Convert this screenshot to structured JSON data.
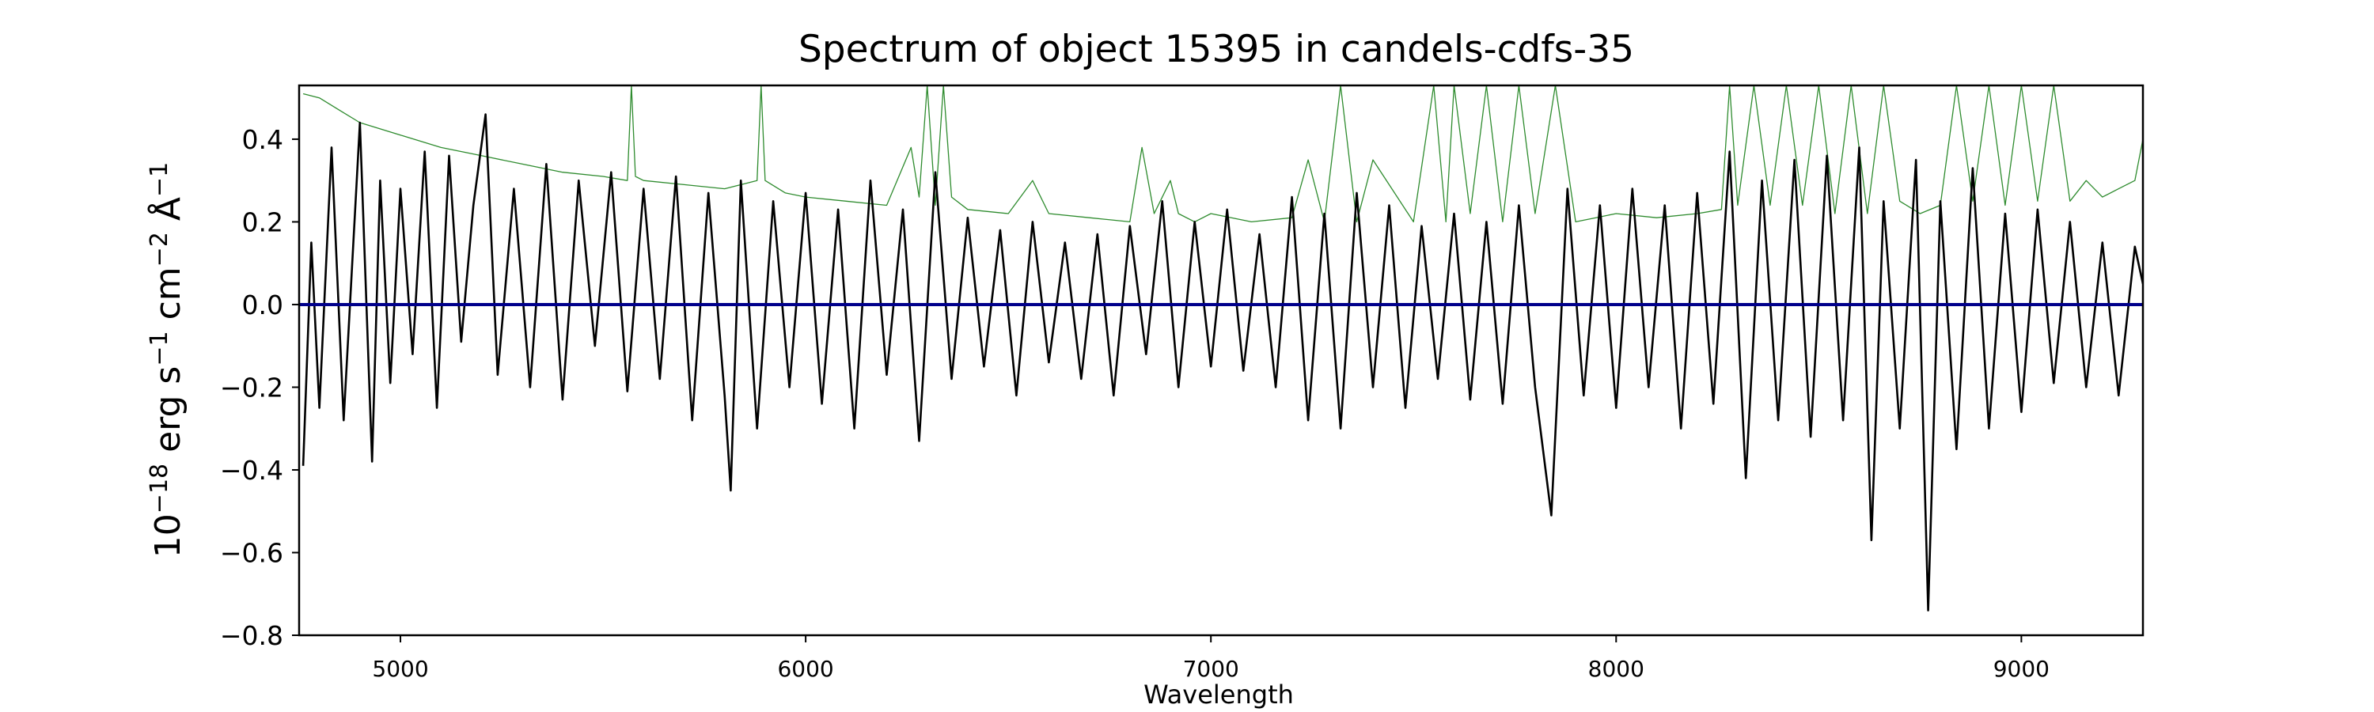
{
  "chart_data": {
    "type": "line",
    "title": "Spectrum of object 15395 in candels-cdfs-35",
    "xlabel": "Wavelength",
    "ylabel": {
      "base": "10",
      "exp1": "−18",
      "unit1": " erg s",
      "exp2": "−1",
      "unit2": " cm",
      "exp3": "−2",
      "unit3": " Å",
      "exp4": "−1"
    },
    "xlim": [
      4750,
      9300
    ],
    "ylim": [
      -0.8,
      0.53
    ],
    "xticks": [
      5000,
      6000,
      7000,
      8000,
      9000
    ],
    "xtick_labels": [
      "5000",
      "6000",
      "7000",
      "8000",
      "9000"
    ],
    "yticks": [
      -0.8,
      -0.6,
      -0.4,
      -0.2,
      0.0,
      0.2,
      0.4
    ],
    "ytick_labels": [
      "−0.8",
      "−0.6",
      "−0.4",
      "−0.2",
      "0.0",
      "0.2",
      "0.4"
    ],
    "grid": false,
    "series": [
      {
        "color": "#000000",
        "x": [
          4760,
          4780,
          4800,
          4830,
          4860,
          4900,
          4930,
          4950,
          4975,
          5000,
          5030,
          5060,
          5090,
          5120,
          5150,
          5180,
          5210,
          5240,
          5280,
          5320,
          5360,
          5400,
          5440,
          5480,
          5520,
          5560,
          5600,
          5640,
          5680,
          5720,
          5760,
          5800,
          5815,
          5840,
          5880,
          5920,
          5960,
          6000,
          6040,
          6080,
          6120,
          6160,
          6200,
          6240,
          6280,
          6320,
          6360,
          6400,
          6440,
          6480,
          6520,
          6560,
          6600,
          6640,
          6680,
          6720,
          6760,
          6800,
          6840,
          6880,
          6920,
          6960,
          7000,
          7040,
          7080,
          7120,
          7160,
          7200,
          7240,
          7280,
          7320,
          7360,
          7400,
          7440,
          7480,
          7520,
          7560,
          7600,
          7640,
          7680,
          7720,
          7760,
          7800,
          7840,
          7880,
          7920,
          7960,
          8000,
          8040,
          8080,
          8120,
          8160,
          8200,
          8240,
          8280,
          8320,
          8360,
          8400,
          8440,
          8480,
          8520,
          8560,
          8600,
          8630,
          8660,
          8700,
          8740,
          8770,
          8800,
          8840,
          8880,
          8920,
          8960,
          9000,
          9040,
          9080,
          9120,
          9160,
          9200,
          9240,
          9280,
          9300
        ],
        "y": [
          -0.39,
          0.15,
          -0.25,
          0.38,
          -0.28,
          0.44,
          -0.38,
          0.3,
          -0.19,
          0.28,
          -0.12,
          0.37,
          -0.25,
          0.36,
          -0.09,
          0.24,
          0.46,
          -0.17,
          0.28,
          -0.2,
          0.34,
          -0.23,
          0.3,
          -0.1,
          0.32,
          -0.21,
          0.28,
          -0.18,
          0.31,
          -0.28,
          0.27,
          -0.22,
          -0.45,
          0.3,
          -0.3,
          0.25,
          -0.2,
          0.27,
          -0.24,
          0.23,
          -0.3,
          0.3,
          -0.17,
          0.23,
          -0.33,
          0.32,
          -0.18,
          0.21,
          -0.15,
          0.18,
          -0.22,
          0.2,
          -0.14,
          0.15,
          -0.18,
          0.17,
          -0.22,
          0.19,
          -0.12,
          0.25,
          -0.2,
          0.2,
          -0.15,
          0.23,
          -0.16,
          0.17,
          -0.2,
          0.26,
          -0.28,
          0.22,
          -0.3,
          0.27,
          -0.2,
          0.24,
          -0.25,
          0.19,
          -0.18,
          0.22,
          -0.23,
          0.2,
          -0.24,
          0.24,
          -0.2,
          -0.51,
          0.28,
          -0.22,
          0.24,
          -0.25,
          0.28,
          -0.2,
          0.24,
          -0.3,
          0.27,
          -0.24,
          0.37,
          -0.42,
          0.3,
          -0.28,
          0.35,
          -0.32,
          0.36,
          -0.28,
          0.38,
          -0.57,
          0.25,
          -0.3,
          0.35,
          -0.74,
          0.25,
          -0.35,
          0.33,
          -0.3,
          0.22,
          -0.26,
          0.23,
          -0.19,
          0.2,
          -0.2,
          0.15,
          -0.22,
          0.14,
          0.05
        ]
      },
      {
        "color": "#00008b",
        "x": [
          4750,
          9300
        ],
        "y": [
          0.0,
          0.0
        ]
      },
      {
        "color": "#2e8b2e",
        "x": [
          4760,
          4800,
          4850,
          4900,
          5000,
          5100,
          5200,
          5300,
          5400,
          5500,
          5560,
          5570,
          5580,
          5600,
          5700,
          5800,
          5880,
          5890,
          5900,
          5950,
          6000,
          6100,
          6200,
          6260,
          6280,
          6300,
          6320,
          6340,
          6360,
          6400,
          6500,
          6560,
          6600,
          6700,
          6800,
          6830,
          6860,
          6900,
          6920,
          6960,
          7000,
          7100,
          7200,
          7240,
          7280,
          7320,
          7360,
          7400,
          7500,
          7550,
          7580,
          7600,
          7640,
          7680,
          7720,
          7760,
          7800,
          7850,
          7900,
          7950,
          8000,
          8100,
          8200,
          8260,
          8280,
          8300,
          8340,
          8380,
          8420,
          8460,
          8500,
          8540,
          8580,
          8620,
          8660,
          8700,
          8750,
          8800,
          8840,
          8880,
          8920,
          8960,
          9000,
          9040,
          9080,
          9120,
          9160,
          9200,
          9240,
          9280,
          9300
        ],
        "y": [
          0.51,
          0.5,
          0.47,
          0.44,
          0.41,
          0.38,
          0.36,
          0.34,
          0.32,
          0.31,
          0.3,
          0.53,
          0.31,
          0.3,
          0.29,
          0.28,
          0.3,
          0.53,
          0.3,
          0.27,
          0.26,
          0.25,
          0.24,
          0.38,
          0.26,
          0.53,
          0.24,
          0.53,
          0.26,
          0.23,
          0.22,
          0.3,
          0.22,
          0.21,
          0.2,
          0.38,
          0.22,
          0.3,
          0.22,
          0.2,
          0.22,
          0.2,
          0.21,
          0.35,
          0.2,
          0.53,
          0.2,
          0.35,
          0.2,
          0.53,
          0.2,
          0.53,
          0.22,
          0.53,
          0.2,
          0.53,
          0.22,
          0.53,
          0.2,
          0.21,
          0.22,
          0.21,
          0.22,
          0.23,
          0.53,
          0.24,
          0.53,
          0.24,
          0.53,
          0.24,
          0.53,
          0.22,
          0.53,
          0.22,
          0.53,
          0.25,
          0.22,
          0.24,
          0.53,
          0.25,
          0.53,
          0.24,
          0.53,
          0.25,
          0.53,
          0.25,
          0.3,
          0.26,
          0.28,
          0.3,
          0.4
        ]
      }
    ]
  }
}
